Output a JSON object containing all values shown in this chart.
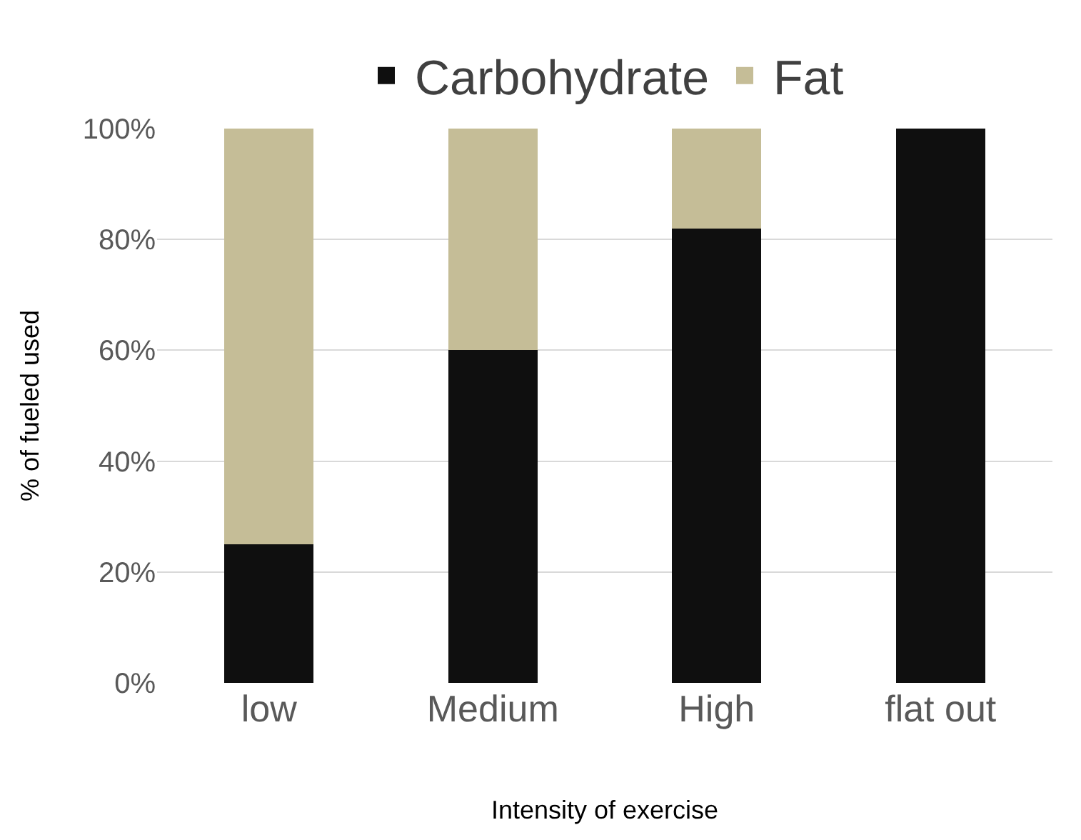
{
  "chart_data": {
    "type": "bar",
    "stacked": true,
    "xlabel": "Intensity of exercise",
    "ylabel": "% of fueled used",
    "categories": [
      "low",
      "Medium",
      "High",
      "flat out"
    ],
    "series": [
      {
        "name": "Carbohydrate",
        "color": "#0f0f0f",
        "values": [
          25,
          60,
          82,
          100
        ]
      },
      {
        "name": "Fat",
        "color": "#c5bd97",
        "values": [
          75,
          40,
          18,
          0
        ]
      }
    ],
    "ylim": [
      0,
      100
    ],
    "yticks": [
      {
        "value": 0,
        "label": "0%"
      },
      {
        "value": 20,
        "label": "20%"
      },
      {
        "value": 40,
        "label": "40%"
      },
      {
        "value": 60,
        "label": "60%"
      },
      {
        "value": 80,
        "label": "80%"
      },
      {
        "value": 100,
        "label": "100%"
      }
    ],
    "grid": "y",
    "legend": "top"
  }
}
